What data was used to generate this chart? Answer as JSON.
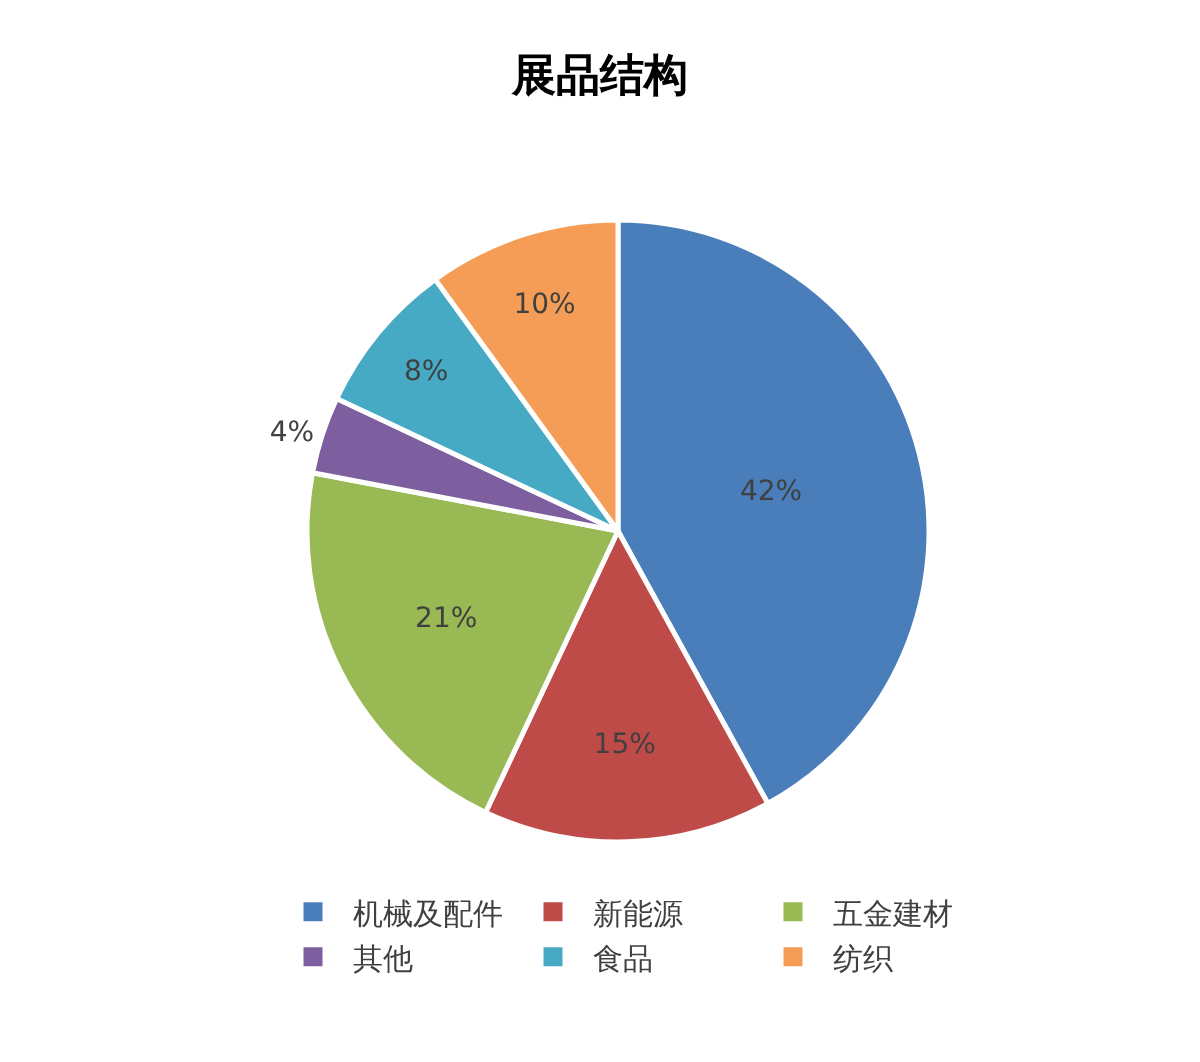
{
  "chart_data": {
    "type": "pie",
    "title": "展品结构",
    "categories": [
      "机械及配件",
      "新能源",
      "五金建材",
      "其他",
      "食品",
      "纺织"
    ],
    "values": [
      42,
      15,
      21,
      4,
      8,
      10
    ],
    "colors": [
      "#4a7ebb",
      "#be4b48",
      "#98b954",
      "#7d5fa0",
      "#46aac5",
      "#f59d56"
    ],
    "value_labels": [
      "42%",
      "15%",
      "21%",
      "4%",
      "8%",
      "10%"
    ],
    "legend": "bottom"
  }
}
